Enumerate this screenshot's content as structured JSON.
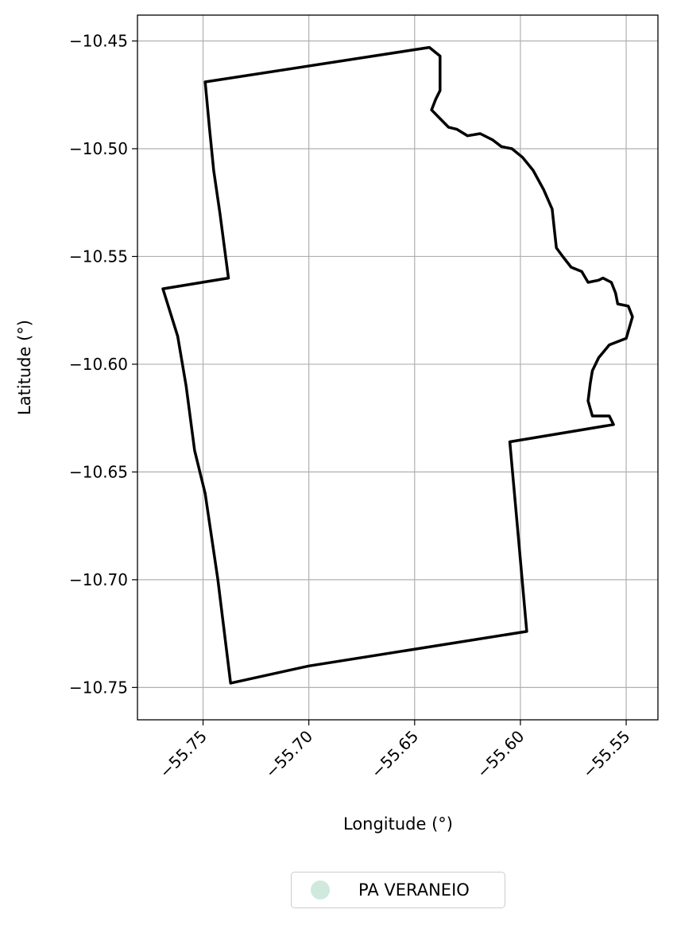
{
  "chart_data": {
    "type": "map",
    "xlabel": "Longitude (°)",
    "ylabel": "Latitude (°)",
    "xlim": [
      -55.781,
      -55.535
    ],
    "ylim": [
      -10.765,
      -10.438
    ],
    "x_ticks": [
      -55.75,
      -55.7,
      -55.65,
      -55.6,
      -55.55
    ],
    "x_tick_labels": [
      "−55.75",
      "−55.70",
      "−55.65",
      "−55.60",
      "−55.55"
    ],
    "y_ticks": [
      -10.45,
      -10.5,
      -10.55,
      -10.6,
      -10.65,
      -10.7,
      -10.75
    ],
    "y_tick_labels": [
      "−10.45",
      "−10.50",
      "−10.55",
      "−10.60",
      "−10.65",
      "−10.70",
      "−10.75"
    ],
    "grid": true,
    "legend_placement": "bottom-center, below the plot",
    "series": [
      {
        "name": "PA VERANEIO",
        "marker_color": "#cfeadd",
        "outline_color": "#000000",
        "boundary": [
          [
            -55.749,
            -10.469
          ],
          [
            -55.643,
            -10.453
          ],
          [
            -55.638,
            -10.457
          ],
          [
            -55.638,
            -10.465
          ],
          [
            -55.638,
            -10.473
          ],
          [
            -55.64,
            -10.477
          ],
          [
            -55.642,
            -10.482
          ],
          [
            -55.638,
            -10.486
          ],
          [
            -55.634,
            -10.49
          ],
          [
            -55.63,
            -10.491
          ],
          [
            -55.625,
            -10.494
          ],
          [
            -55.619,
            -10.493
          ],
          [
            -55.613,
            -10.496
          ],
          [
            -55.609,
            -10.499
          ],
          [
            -55.604,
            -10.5
          ],
          [
            -55.599,
            -10.504
          ],
          [
            -55.594,
            -10.51
          ],
          [
            -55.589,
            -10.519
          ],
          [
            -55.585,
            -10.528
          ],
          [
            -55.584,
            -10.537
          ],
          [
            -55.583,
            -10.546
          ],
          [
            -55.58,
            -10.55
          ],
          [
            -55.576,
            -10.555
          ],
          [
            -55.571,
            -10.557
          ],
          [
            -55.568,
            -10.562
          ],
          [
            -55.563,
            -10.561
          ],
          [
            -55.561,
            -10.56
          ],
          [
            -55.557,
            -10.562
          ],
          [
            -55.555,
            -10.567
          ],
          [
            -55.554,
            -10.572
          ],
          [
            -55.549,
            -10.573
          ],
          [
            -55.547,
            -10.578
          ],
          [
            -55.55,
            -10.588
          ],
          [
            -55.558,
            -10.591
          ],
          [
            -55.563,
            -10.597
          ],
          [
            -55.566,
            -10.603
          ],
          [
            -55.567,
            -10.609
          ],
          [
            -55.568,
            -10.617
          ],
          [
            -55.566,
            -10.624
          ],
          [
            -55.562,
            -10.624
          ],
          [
            -55.558,
            -10.624
          ],
          [
            -55.556,
            -10.628
          ],
          [
            -55.605,
            -10.636
          ],
          [
            -55.601,
            -10.68
          ],
          [
            -55.597,
            -10.724
          ],
          [
            -55.7,
            -10.74
          ],
          [
            -55.737,
            -10.748
          ],
          [
            -55.743,
            -10.7
          ],
          [
            -55.749,
            -10.66
          ],
          [
            -55.754,
            -10.64
          ],
          [
            -55.758,
            -10.61
          ],
          [
            -55.762,
            -10.587
          ],
          [
            -55.769,
            -10.565
          ],
          [
            -55.738,
            -10.56
          ],
          [
            -55.742,
            -10.53
          ],
          [
            -55.745,
            -10.51
          ],
          [
            -55.746,
            -10.5
          ],
          [
            -55.747,
            -10.49
          ],
          [
            -55.749,
            -10.469
          ]
        ]
      }
    ]
  }
}
